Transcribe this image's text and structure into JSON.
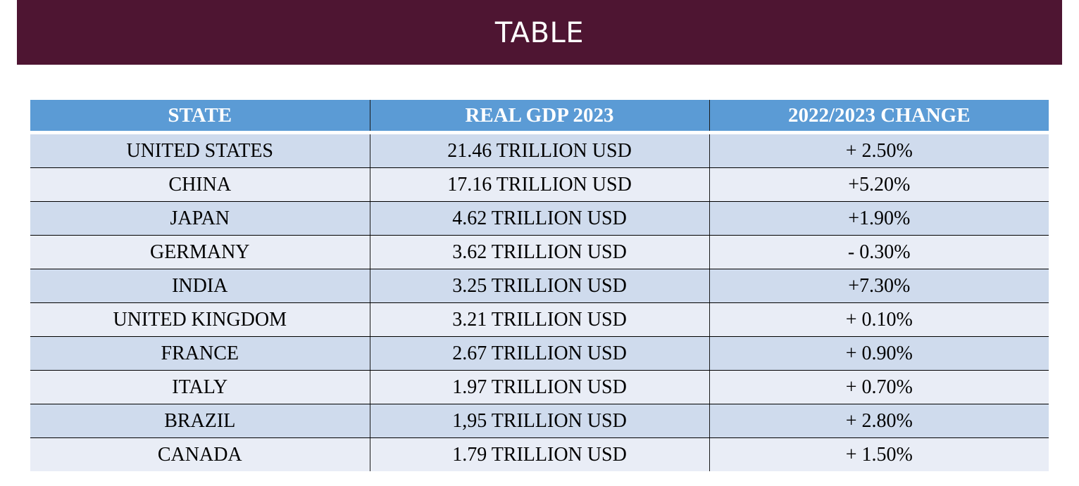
{
  "title": "TABLE",
  "table": {
    "headers": [
      "STATE",
      "REAL GDP 2023",
      "2022/2023 CHANGE"
    ],
    "rows": [
      [
        "UNITED STATES",
        "21.46 TRILLION USD",
        "+ 2.50%"
      ],
      [
        "CHINA",
        "17.16 TRILLION USD",
        "+5.20%"
      ],
      [
        "JAPAN",
        "4.62 TRILLION USD",
        "+1.90%"
      ],
      [
        "GERMANY",
        "3.62 TRILLION USD",
        "- 0.30%"
      ],
      [
        "INDIA",
        "3.25 TRILLION USD",
        "+7.30%"
      ],
      [
        "UNITED KINGDOM",
        "3.21 TRILLION USD",
        "+ 0.10%"
      ],
      [
        "FRANCE",
        "2.67 TRILLION USD",
        "+ 0.90%"
      ],
      [
        "ITALY",
        "1.97 TRILLION USD",
        "+ 0.70%"
      ],
      [
        "BRAZIL",
        "1,95 TRILLION USD",
        "+ 2.80%"
      ],
      [
        "CANADA",
        "1.79 TRILLION USD",
        "+ 1.50%"
      ]
    ]
  },
  "colors": {
    "title_bar": "#4e1532",
    "header_bg": "#5b9bd5",
    "row_dark": "#cfdbed",
    "row_light": "#e9edf6"
  }
}
